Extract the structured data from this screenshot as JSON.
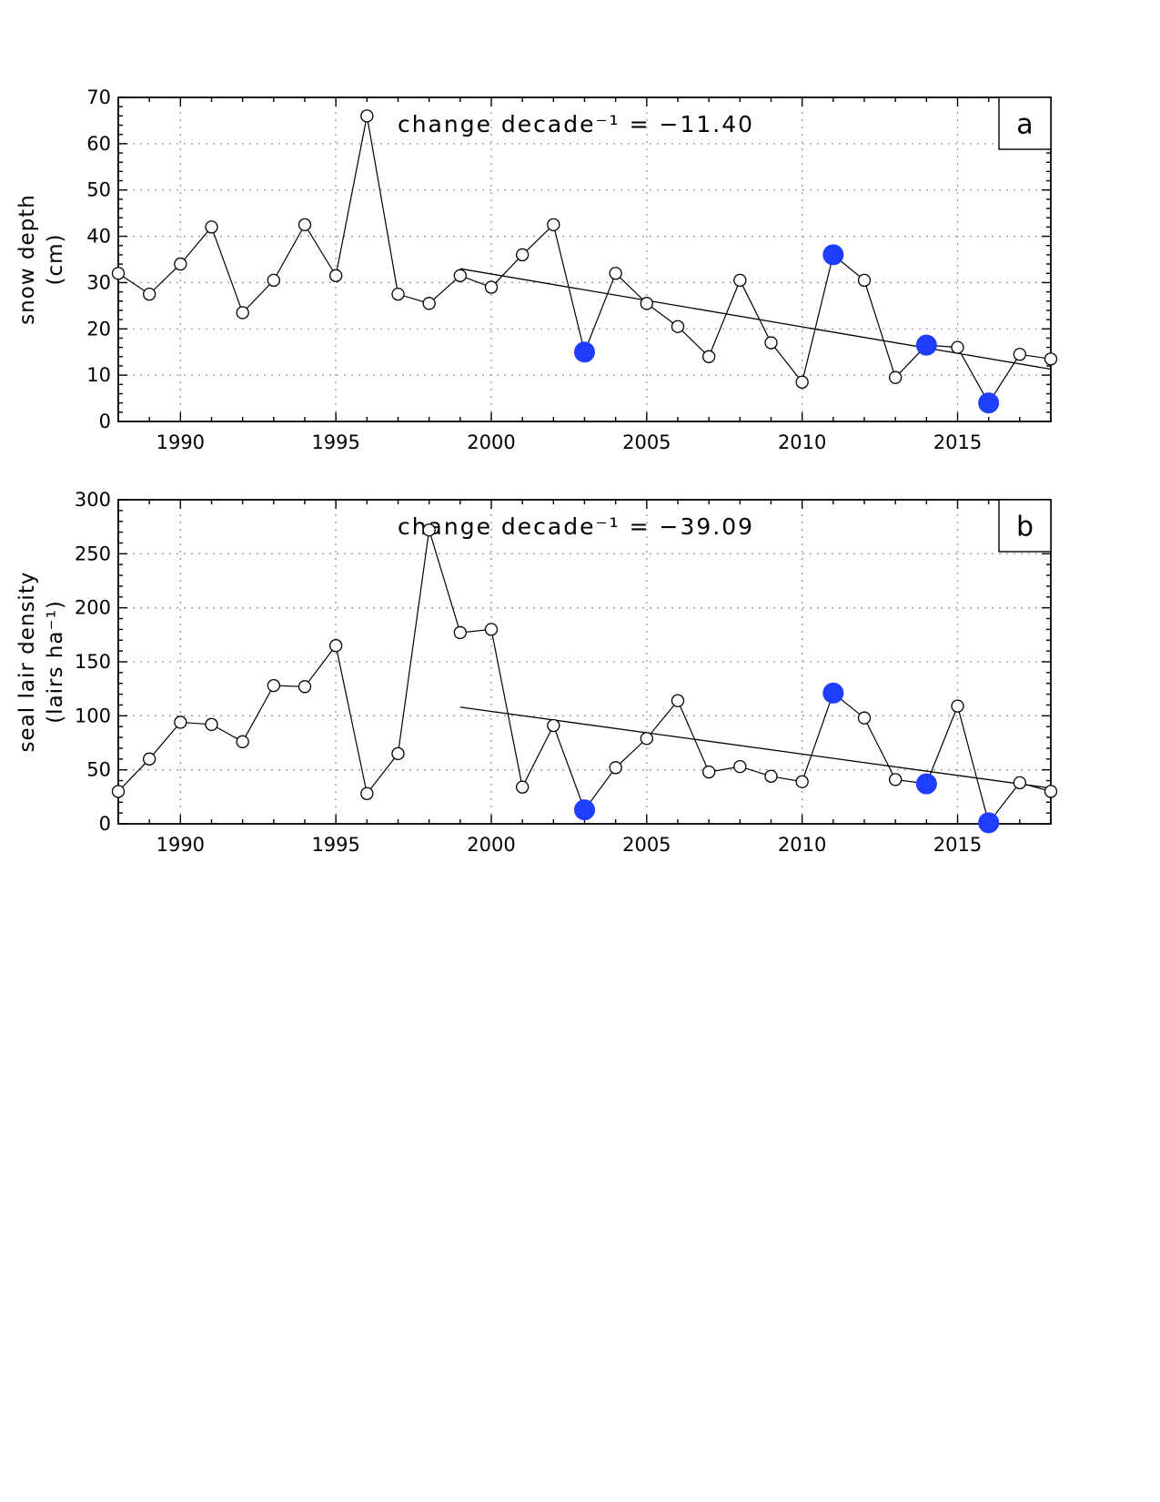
{
  "chart_data": [
    {
      "type": "line",
      "panel_label": "a",
      "title": "",
      "xlabel": "",
      "ylabel": "snow depth (cm)",
      "ylabel_lines": [
        "snow depth",
        "(cm)"
      ],
      "annotation": "change decade⁻¹ = −11.40",
      "xlim": [
        1988,
        2018
      ],
      "ylim": [
        0,
        70
      ],
      "x_ticks": [
        1990,
        1995,
        2000,
        2005,
        2010,
        2015
      ],
      "y_ticks": [
        0,
        10,
        20,
        30,
        40,
        50,
        60,
        70
      ],
      "grid": true,
      "x": [
        1988,
        1989,
        1990,
        1991,
        1992,
        1993,
        1994,
        1995,
        1996,
        1997,
        1998,
        1999,
        2000,
        2001,
        2002,
        2003,
        2004,
        2005,
        2006,
        2007,
        2008,
        2009,
        2010,
        2011,
        2012,
        2013,
        2014,
        2015,
        2016,
        2017,
        2018
      ],
      "values": [
        32,
        27.5,
        34,
        42,
        23.5,
        30.5,
        42.5,
        31.5,
        66,
        27.5,
        25.5,
        31.5,
        29,
        36,
        42.5,
        15,
        32,
        25.5,
        20.5,
        14,
        30.5,
        17,
        8.5,
        36,
        30.5,
        9.5,
        16.5,
        16,
        4,
        14.5,
        13.5
      ],
      "highlight_years": [
        2003,
        2011,
        2014,
        2016
      ],
      "highlight_color": "#1f3dfd",
      "trend": {
        "x": [
          1999,
          2018
        ],
        "y": [
          33,
          11.3
        ]
      }
    },
    {
      "type": "line",
      "panel_label": "b",
      "title": "",
      "xlabel": "",
      "ylabel": "seal lair density (lairs ha⁻¹)",
      "ylabel_lines": [
        "seal lair density",
        "(lairs ha⁻¹)"
      ],
      "annotation": "change decade⁻¹ = −39.09",
      "xlim": [
        1988,
        2018
      ],
      "ylim": [
        0,
        300
      ],
      "x_ticks": [
        1990,
        1995,
        2000,
        2005,
        2010,
        2015
      ],
      "y_ticks": [
        0,
        50,
        100,
        150,
        200,
        250,
        300
      ],
      "grid": true,
      "x": [
        1988,
        1989,
        1990,
        1991,
        1992,
        1993,
        1994,
        1995,
        1996,
        1997,
        1998,
        1999,
        2000,
        2001,
        2002,
        2003,
        2004,
        2005,
        2006,
        2007,
        2008,
        2009,
        2010,
        2011,
        2012,
        2013,
        2014,
        2015,
        2016,
        2017,
        2018
      ],
      "values": [
        30,
        60,
        94,
        92,
        76,
        128,
        127,
        165,
        28,
        65,
        272,
        177,
        180,
        34,
        91,
        13,
        52,
        79,
        114,
        48,
        53,
        44,
        39,
        121,
        98,
        41,
        37,
        109,
        1,
        38,
        30
      ],
      "highlight_years": [
        2003,
        2011,
        2014,
        2016
      ],
      "highlight_color": "#1f3dfd",
      "trend": {
        "x": [
          1999,
          2018
        ],
        "y": [
          108,
          33
        ]
      }
    }
  ]
}
